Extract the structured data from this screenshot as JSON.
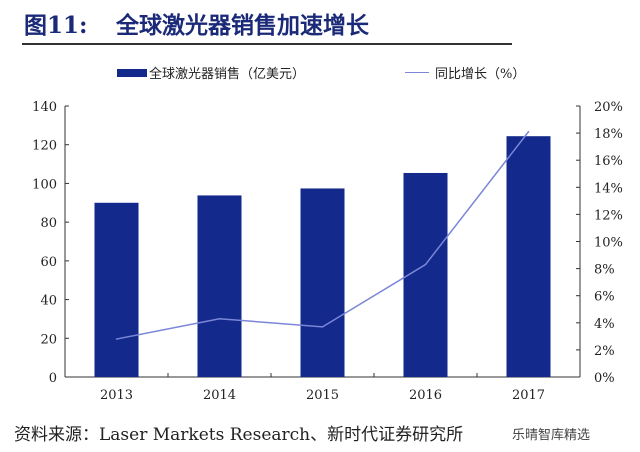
{
  "header": {
    "figure_number": "图11:",
    "title": "全球激光器销售加速增长"
  },
  "chart_data": {
    "type": "bar+line",
    "title": "全球激光器销售加速增长",
    "categories": [
      "2013",
      "2014",
      "2015",
      "2016",
      "2017"
    ],
    "series": [
      {
        "name": "全球激光器销售（亿美元）",
        "type": "bar",
        "axis": "left",
        "values": [
          90,
          93.8,
          97.4,
          105.4,
          124.4
        ],
        "color": "#13298c"
      },
      {
        "name": "同比增长（%）",
        "type": "line",
        "axis": "right",
        "values": [
          2.8,
          4.3,
          3.7,
          8.3,
          18.1
        ],
        "color": "#7b86d8"
      }
    ],
    "y_left": {
      "range": [
        0,
        140
      ],
      "ticks": [
        "0",
        "20",
        "40",
        "60",
        "80",
        "100",
        "120",
        "140"
      ]
    },
    "y_right": {
      "range": [
        0,
        20
      ],
      "ticks": [
        "0%",
        "2%",
        "4%",
        "6%",
        "8%",
        "10%",
        "12%",
        "14%",
        "16%",
        "18%",
        "20%"
      ]
    },
    "legend": "top",
    "grid": false
  },
  "footer": {
    "source": "资料来源：Laser Markets Research、新时代证券研究所",
    "watermark": "乐晴智库精选"
  }
}
